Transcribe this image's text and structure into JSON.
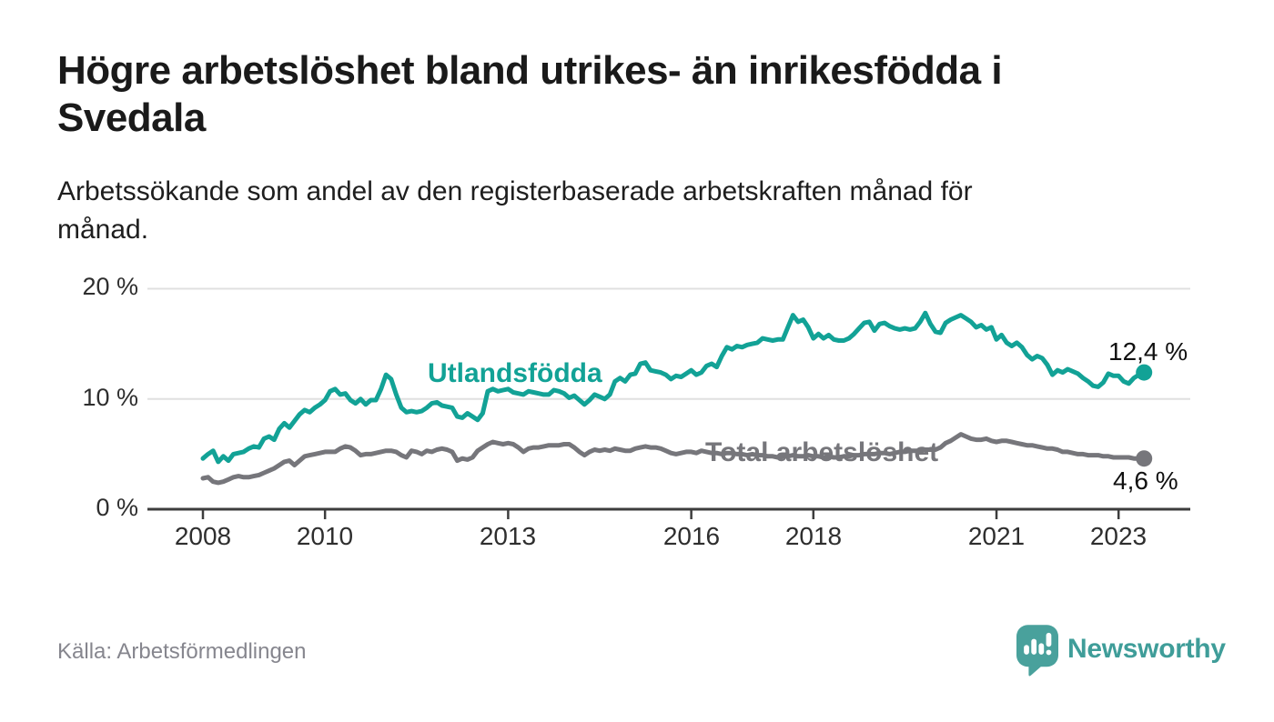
{
  "header": {
    "title": "Högre arbetslöshet bland utrikes- än inrikesfödda i Svedala",
    "subtitle": "Arbetssökande som andel av den registerbaserade arbetskraften månad för månad."
  },
  "footer": {
    "source": "Källa: Arbetsförmedlingen",
    "brand": "Newsworthy"
  },
  "colors": {
    "accent_teal": "#12a296",
    "line_gray": "#76767b",
    "axis": "#3d3d3d",
    "grid": "#e0e0e0",
    "text_dark": "#1a1a1a",
    "muted": "#86868e",
    "logo_teal": "#49a19c"
  },
  "chart_data": {
    "type": "line",
    "title": "Högre arbetslöshet bland utrikes- än inrikesfödda i Svedala",
    "xlabel": "",
    "ylabel": "Arbetssökande som andel av den registerbaserade arbetskraften",
    "unit": "%",
    "x_start_year": 2008,
    "x_step_months": 1,
    "xlim": [
      2007.1,
      2024.2
    ],
    "ylim": [
      0,
      21.3
    ],
    "grid": "horizontal",
    "legend_position": "inline-labels",
    "y_ticks": [
      {
        "value": 0,
        "label": "0 %"
      },
      {
        "value": 10,
        "label": "10 %"
      },
      {
        "value": 20,
        "label": "20 %"
      }
    ],
    "x_ticks": [
      {
        "year": 2008,
        "label": "2008"
      },
      {
        "year": 2010,
        "label": "2010"
      },
      {
        "year": 2013,
        "label": "2013"
      },
      {
        "year": 2016,
        "label": "2016"
      },
      {
        "year": 2018,
        "label": "2018"
      },
      {
        "year": 2021,
        "label": "2021"
      },
      {
        "year": 2023,
        "label": "2023"
      }
    ],
    "series": [
      {
        "name": "Utlandsfödda",
        "color": "#12a296",
        "end_label": "12,4 %",
        "end_value": 12.4,
        "values": [
          4.6,
          5.0,
          5.3,
          4.3,
          4.8,
          4.4,
          5.0,
          5.1,
          5.2,
          5.5,
          5.7,
          5.6,
          6.4,
          6.6,
          6.3,
          7.3,
          7.8,
          7.4,
          8.0,
          8.6,
          9.0,
          8.8,
          9.2,
          9.5,
          9.9,
          10.7,
          10.9,
          10.4,
          10.5,
          9.9,
          9.6,
          10.0,
          9.5,
          9.9,
          9.9,
          10.9,
          12.2,
          11.8,
          10.4,
          9.2,
          8.8,
          8.9,
          8.8,
          8.9,
          9.2,
          9.6,
          9.7,
          9.4,
          9.3,
          9.2,
          8.4,
          8.3,
          8.7,
          8.4,
          8.1,
          8.7,
          10.7,
          10.9,
          10.7,
          10.8,
          10.9,
          10.6,
          10.5,
          10.4,
          10.7,
          10.6,
          10.5,
          10.4,
          10.4,
          10.8,
          10.7,
          10.5,
          10.1,
          10.3,
          9.9,
          9.5,
          9.9,
          10.4,
          10.2,
          10.0,
          10.4,
          11.6,
          11.9,
          11.6,
          12.2,
          12.3,
          13.2,
          13.3,
          12.6,
          12.5,
          12.4,
          12.2,
          11.8,
          12.1,
          12.0,
          12.3,
          12.6,
          12.2,
          12.4,
          13.0,
          13.2,
          12.9,
          13.9,
          14.7,
          14.5,
          14.8,
          14.7,
          14.9,
          15.0,
          15.1,
          15.5,
          15.4,
          15.3,
          15.4,
          15.4,
          16.5,
          17.6,
          17.0,
          17.2,
          16.5,
          15.5,
          15.9,
          15.5,
          15.8,
          15.4,
          15.3,
          15.3,
          15.5,
          15.9,
          16.4,
          16.9,
          17.0,
          16.2,
          16.8,
          16.9,
          16.6,
          16.4,
          16.3,
          16.4,
          16.3,
          16.4,
          17.0,
          17.8,
          16.8,
          16.1,
          16.0,
          16.9,
          17.2,
          17.4,
          17.6,
          17.3,
          17.0,
          16.5,
          16.7,
          16.3,
          16.5,
          15.4,
          15.8,
          15.1,
          14.8,
          15.1,
          14.7,
          14.0,
          13.6,
          13.9,
          13.7,
          13.1,
          12.2,
          12.6,
          12.4,
          12.7,
          12.5,
          12.3,
          11.9,
          11.6,
          11.2,
          11.1,
          11.5,
          12.3,
          12.1,
          12.1,
          11.6,
          11.4,
          11.9,
          12.2,
          12.4
        ]
      },
      {
        "name": "Total arbetslöshet",
        "color": "#76767b",
        "end_label": "4,6 %",
        "end_value": 4.6,
        "values": [
          2.8,
          2.9,
          2.5,
          2.4,
          2.5,
          2.7,
          2.9,
          3.0,
          2.9,
          2.9,
          3.0,
          3.1,
          3.3,
          3.5,
          3.7,
          4.0,
          4.3,
          4.4,
          4.0,
          4.4,
          4.8,
          4.9,
          5.0,
          5.1,
          5.2,
          5.2,
          5.2,
          5.5,
          5.7,
          5.6,
          5.3,
          4.9,
          5.0,
          5.0,
          5.1,
          5.2,
          5.3,
          5.3,
          5.2,
          4.9,
          4.7,
          5.3,
          5.2,
          5.0,
          5.3,
          5.2,
          5.4,
          5.5,
          5.4,
          5.2,
          4.4,
          4.6,
          4.5,
          4.7,
          5.3,
          5.6,
          5.9,
          6.1,
          6.0,
          5.9,
          6.0,
          5.9,
          5.6,
          5.2,
          5.5,
          5.6,
          5.6,
          5.7,
          5.8,
          5.8,
          5.8,
          5.9,
          5.9,
          5.6,
          5.2,
          4.9,
          5.2,
          5.4,
          5.3,
          5.4,
          5.3,
          5.5,
          5.4,
          5.3,
          5.3,
          5.5,
          5.6,
          5.7,
          5.6,
          5.6,
          5.5,
          5.3,
          5.1,
          5.0,
          5.1,
          5.2,
          5.2,
          5.1,
          5.3,
          5.2,
          5.1,
          5.1,
          5.0,
          5.1,
          5.1,
          5.0,
          5.0,
          4.9,
          5.0,
          4.9,
          4.9,
          4.8,
          4.8,
          4.7,
          4.8,
          4.8,
          4.9,
          4.8,
          4.8,
          4.9,
          4.8,
          4.8,
          4.7,
          4.8,
          4.7,
          4.7,
          4.8,
          4.8,
          4.9,
          4.9,
          5.0,
          5.0,
          5.0,
          5.1,
          5.1,
          5.0,
          5.1,
          5.2,
          5.2,
          5.3,
          5.3,
          5.3,
          5.4,
          5.4,
          5.4,
          5.6,
          6.0,
          6.2,
          6.5,
          6.8,
          6.6,
          6.4,
          6.3,
          6.3,
          6.4,
          6.2,
          6.1,
          6.2,
          6.2,
          6.1,
          6.0,
          5.9,
          5.8,
          5.8,
          5.7,
          5.6,
          5.5,
          5.5,
          5.4,
          5.2,
          5.2,
          5.1,
          5.0,
          5.0,
          4.9,
          4.9,
          4.9,
          4.8,
          4.8,
          4.7,
          4.7,
          4.7,
          4.7,
          4.6,
          4.6,
          4.6
        ]
      }
    ]
  }
}
